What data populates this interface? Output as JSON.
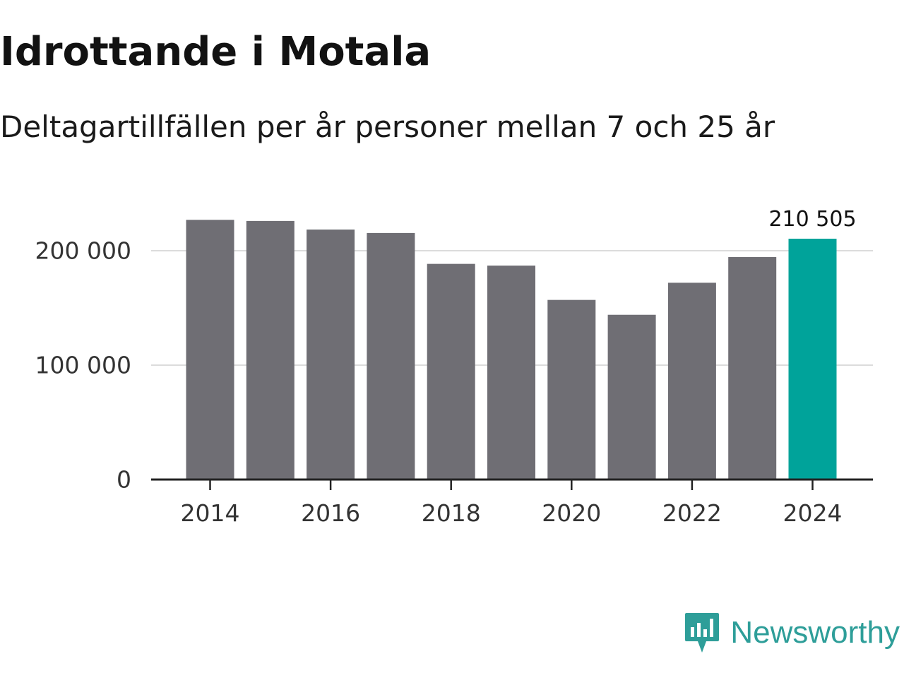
{
  "header": {
    "title": "Idrottande i Motala",
    "subtitle": "Deltagartillfällen per år personer mellan 7 och 25 år"
  },
  "brand": {
    "name": "Newsworthy",
    "logo_icon": "bar-chart-speech-bubble-icon"
  },
  "colors": {
    "bar": "#6f6e74",
    "highlight": "#00a39a",
    "grid": "#dcdcdc",
    "axis": "#222222",
    "text": "#333333",
    "brand": "#2e9e99"
  },
  "chart_data": {
    "type": "bar",
    "title": "Idrottande i Motala",
    "subtitle": "Deltagartillfällen per år personer mellan 7 och 25 år",
    "xlabel": "",
    "ylabel": "",
    "categories": [
      "2014",
      "2015",
      "2016",
      "2017",
      "2018",
      "2019",
      "2020",
      "2021",
      "2022",
      "2023",
      "2024"
    ],
    "values": [
      227000,
      226000,
      218500,
      215500,
      188500,
      187000,
      157000,
      144000,
      172000,
      194500,
      210505
    ],
    "highlight_index": 10,
    "highlight_label": "210 505",
    "ylim": [
      0,
      200000
    ],
    "yticks": [
      0,
      100000,
      200000
    ],
    "ytick_labels": [
      "0",
      "100 000",
      "200 000"
    ],
    "xtick_labels": [
      "2014",
      "2016",
      "2018",
      "2020",
      "2022",
      "2024"
    ],
    "grid": true,
    "legend": "none"
  }
}
